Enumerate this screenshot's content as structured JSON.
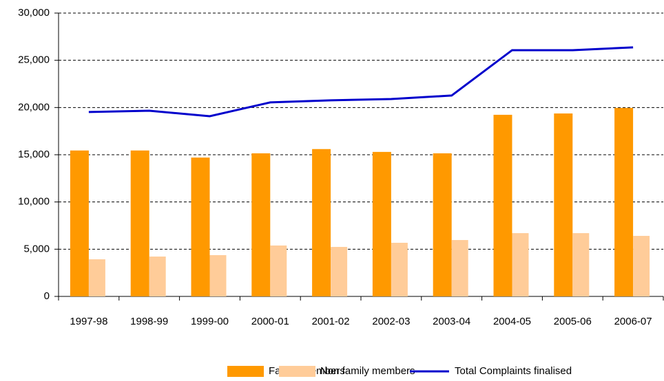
{
  "chart_data": {
    "type": "bar",
    "categories": [
      "1997-98",
      "1998-99",
      "1999-00",
      "2000-01",
      "2001-02",
      "2002-03",
      "2003-04",
      "2004-05",
      "2005-06",
      "2006-07"
    ],
    "series": [
      {
        "name": "Family members",
        "type": "bar",
        "color": "#ff9900",
        "values": [
          15450,
          15450,
          14700,
          15150,
          15600,
          15300,
          15150,
          19230,
          19370,
          19960
        ]
      },
      {
        "name": "Non family members",
        "type": "bar",
        "color": "#ffcc99",
        "values": [
          3930,
          4220,
          4370,
          5390,
          5240,
          5680,
          5970,
          6700,
          6700,
          6410
        ]
      },
      {
        "name": "Total Complaints finalised",
        "type": "line",
        "color": "#0000cc",
        "values": [
          19520,
          19660,
          19080,
          20540,
          20760,
          20900,
          21270,
          26070,
          26070,
          26370
        ]
      }
    ],
    "ylim": [
      0,
      30000
    ],
    "yticks": [
      0,
      {
        "value": 5000,
        "label": "5,000"
      },
      {
        "value": 10000,
        "label": "10,000"
      },
      {
        "value": 15000,
        "label": "15,000"
      },
      {
        "value": 20000,
        "label": "20,000"
      },
      {
        "value": 25000,
        "label": "25,000"
      },
      {
        "value": 30000,
        "label": "30,000"
      }
    ],
    "grid": true,
    "legend": "bottom"
  }
}
